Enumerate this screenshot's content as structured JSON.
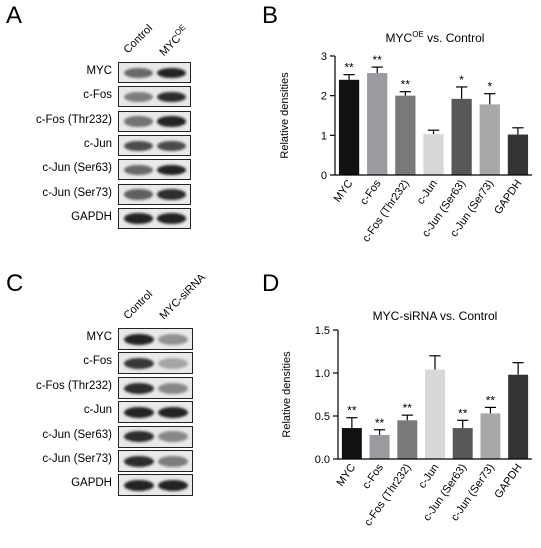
{
  "panels": {
    "A": {
      "letter": "A",
      "lanes": [
        "Control",
        "MYC",
        "OE"
      ],
      "rows": [
        {
          "label": "MYC",
          "bands": [
            0.55,
            0.9
          ]
        },
        {
          "label": "c-Fos",
          "bands": [
            0.45,
            0.85
          ]
        },
        {
          "label": "c-Fos (Thr232)",
          "bands": [
            0.5,
            0.9
          ]
        },
        {
          "label": "c-Jun",
          "bands": [
            0.7,
            0.7
          ]
        },
        {
          "label": "c-Jun (Ser63)",
          "bands": [
            0.55,
            0.9
          ]
        },
        {
          "label": "c-Jun (Ser73)",
          "bands": [
            0.6,
            0.85
          ]
        },
        {
          "label": "GAPDH",
          "bands": [
            0.9,
            0.9
          ]
        }
      ]
    },
    "C": {
      "letter": "C",
      "lanes": [
        "Control",
        "MYC-siRNA"
      ],
      "rows": [
        {
          "label": "MYC",
          "bands": [
            0.9,
            0.35
          ]
        },
        {
          "label": "c-Fos",
          "bands": [
            0.8,
            0.25
          ]
        },
        {
          "label": "c-Fos (Thr232)",
          "bands": [
            0.85,
            0.4
          ]
        },
        {
          "label": "c-Jun",
          "bands": [
            0.9,
            0.9
          ]
        },
        {
          "label": "c-Jun (Ser63)",
          "bands": [
            0.85,
            0.4
          ]
        },
        {
          "label": "c-Jun (Ser73)",
          "bands": [
            0.85,
            0.45
          ]
        },
        {
          "label": "GAPDH",
          "bands": [
            0.9,
            0.9
          ]
        }
      ]
    },
    "B": {
      "letter": "B"
    },
    "D": {
      "letter": "D"
    }
  },
  "chart_data": [
    {
      "type": "bar",
      "title": "MYC",
      "title_sup": "OE",
      "title_rest": " vs. Control",
      "ylabel": "Relative densities",
      "categories": [
        "MYC",
        "c-Fos",
        "c-Fos (Thr232)",
        "c-Jun",
        "c-Jun (Ser63)",
        "c-Jun (Ser73)",
        "GAPDH"
      ],
      "values": [
        2.4,
        2.57,
        2.0,
        1.03,
        1.92,
        1.78,
        1.02
      ],
      "errors": [
        0.13,
        0.15,
        0.1,
        0.1,
        0.3,
        0.27,
        0.17
      ],
      "significance": [
        "**",
        "**",
        "**",
        "",
        "*",
        "*",
        ""
      ],
      "colors": [
        "#111111",
        "#9a9aa0",
        "#7a7a7a",
        "#d8d8d8",
        "#585858",
        "#a8a8a8",
        "#333333"
      ],
      "ylim": [
        0,
        3
      ],
      "yticks": [
        "0",
        "1",
        "2",
        "3"
      ]
    },
    {
      "type": "bar",
      "title": "MYC-siRNA vs. Control",
      "ylabel": "Relative densities",
      "categories": [
        "MYC",
        "c-Fos",
        "c-Fos (Thr232)",
        "c-Jun",
        "c-Jun (Ser63)",
        "c-Jun (Ser73)",
        "GAPDH"
      ],
      "values": [
        0.36,
        0.28,
        0.45,
        1.04,
        0.36,
        0.53,
        0.98
      ],
      "errors": [
        0.12,
        0.06,
        0.06,
        0.16,
        0.09,
        0.07,
        0.14
      ],
      "significance": [
        "**",
        "**",
        "**",
        "",
        "**",
        "**",
        ""
      ],
      "colors": [
        "#111111",
        "#9a9aa0",
        "#7a7a7a",
        "#d8d8d8",
        "#585858",
        "#a8a8a8",
        "#333333"
      ],
      "ylim": [
        0,
        1.5
      ],
      "yticks": [
        "0.0",
        "0.5",
        "1.0",
        "1.5"
      ]
    }
  ]
}
